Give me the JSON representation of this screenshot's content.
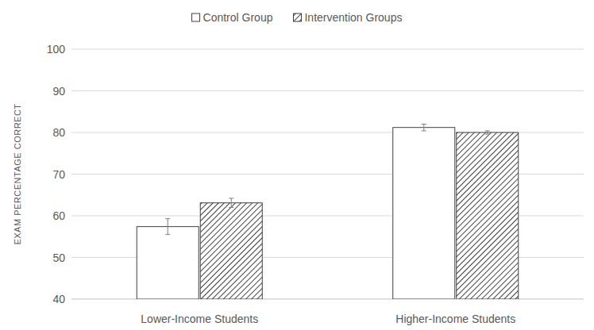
{
  "chart_data": {
    "type": "bar",
    "categories": [
      "Lower-Income Students",
      "Higher-Income Students"
    ],
    "series": [
      {
        "name": "Control Group",
        "color": "#ffffff",
        "values": [
          57.4,
          81.2
        ],
        "errors": [
          1.9,
          0.8
        ]
      },
      {
        "name": "Intervention Groups",
        "color": "#404040",
        "values": [
          63.1,
          80.0
        ],
        "errors": [
          1.1,
          0.4
        ]
      }
    ],
    "y_label": "EXAM PERCENTAGE CORRECT",
    "ylim": [
      40,
      100
    ],
    "yticks": [
      40,
      50,
      60,
      70,
      80,
      90,
      100
    ],
    "grid": true,
    "legend": "top"
  }
}
